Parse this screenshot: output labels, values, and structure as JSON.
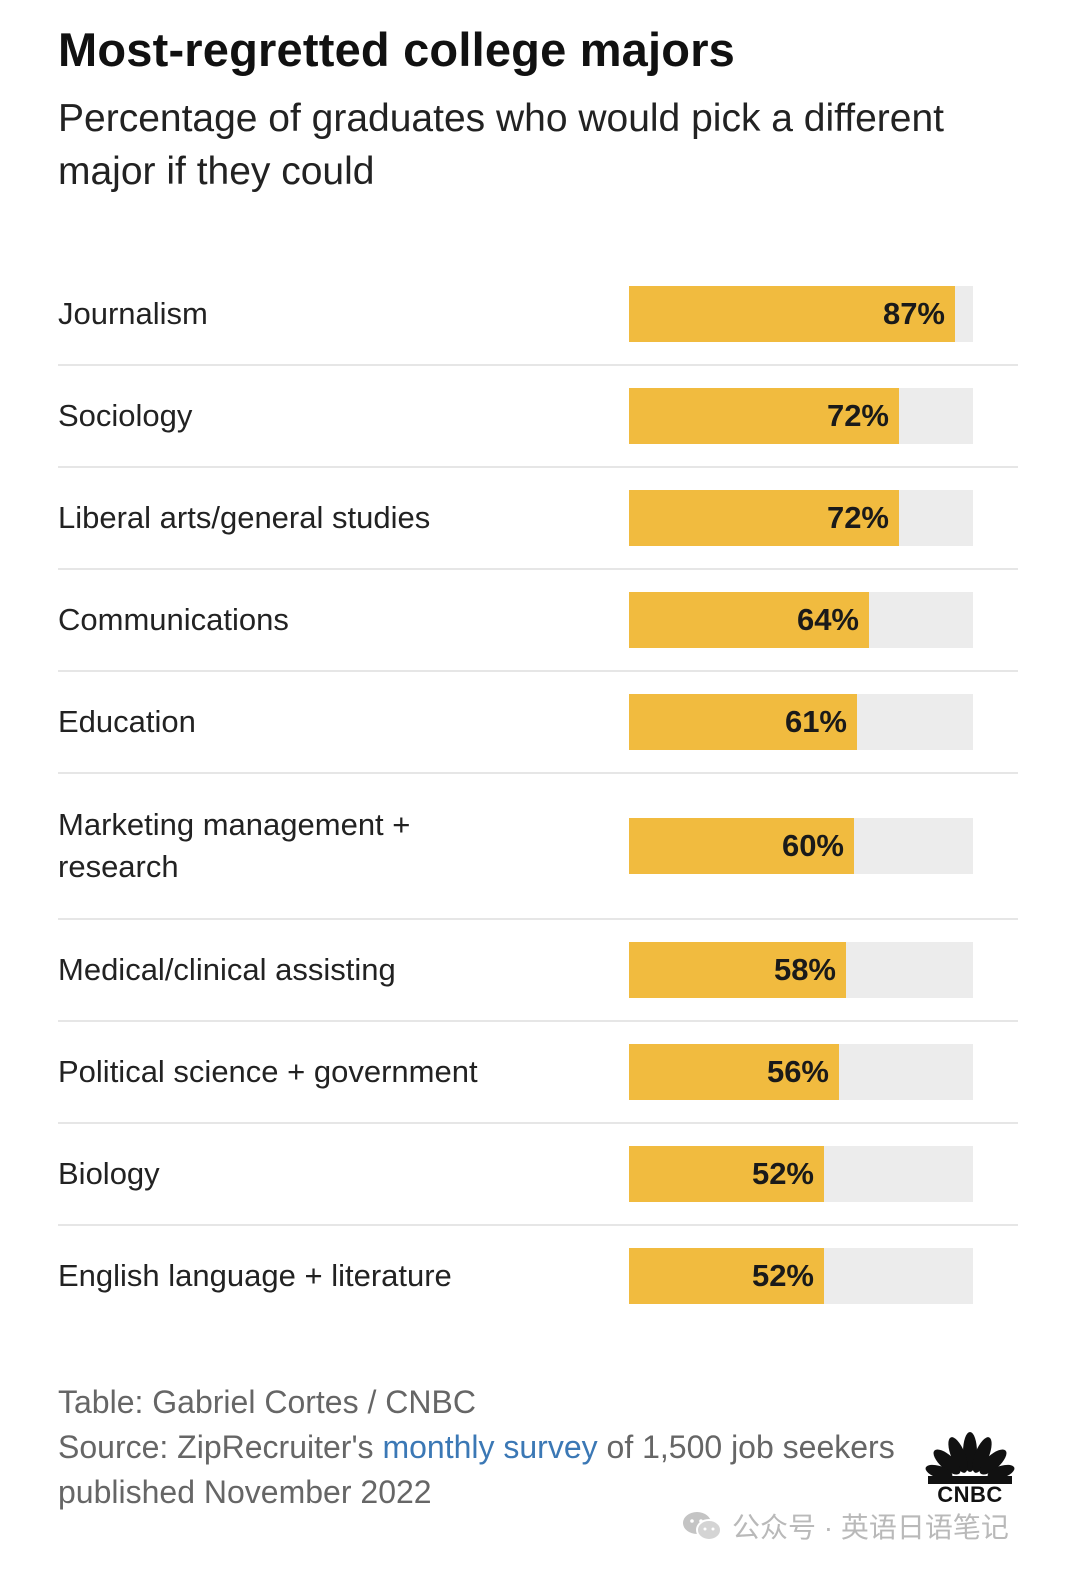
{
  "chart_data": {
    "type": "bar",
    "orientation": "horizontal",
    "title": "Most-regretted college majors",
    "subtitle": "Percentage of graduates who would pick a different major if they could",
    "categories": [
      "Journalism",
      "Sociology",
      "Liberal arts/general studies",
      "Communications",
      "Education",
      "Marketing management + research",
      "Medical/clinical assisting",
      "Political science + government",
      "Biology",
      "English language + literature"
    ],
    "values": [
      87,
      72,
      72,
      64,
      61,
      60,
      58,
      56,
      52,
      52
    ],
    "value_labels": [
      "87%",
      "72%",
      "72%",
      "64%",
      "61%",
      "60%",
      "58%",
      "56%",
      "52%",
      "52%"
    ],
    "xlim": [
      0,
      90
    ],
    "bar_color": "#f1bb3f",
    "track_color": "#ececec"
  },
  "footer": {
    "credit": "Table: Gabriel Cortes / CNBC",
    "source_prefix": "Source: ZipRecruiter's ",
    "source_link": "monthly survey",
    "source_suffix": " of 1,500 job seekers published November 2022"
  },
  "logo": {
    "text": "CNBC",
    "icon": "peacock-icon"
  },
  "watermark": {
    "text": "公众号 · 英语日语笔记",
    "icon": "wechat-icon"
  }
}
